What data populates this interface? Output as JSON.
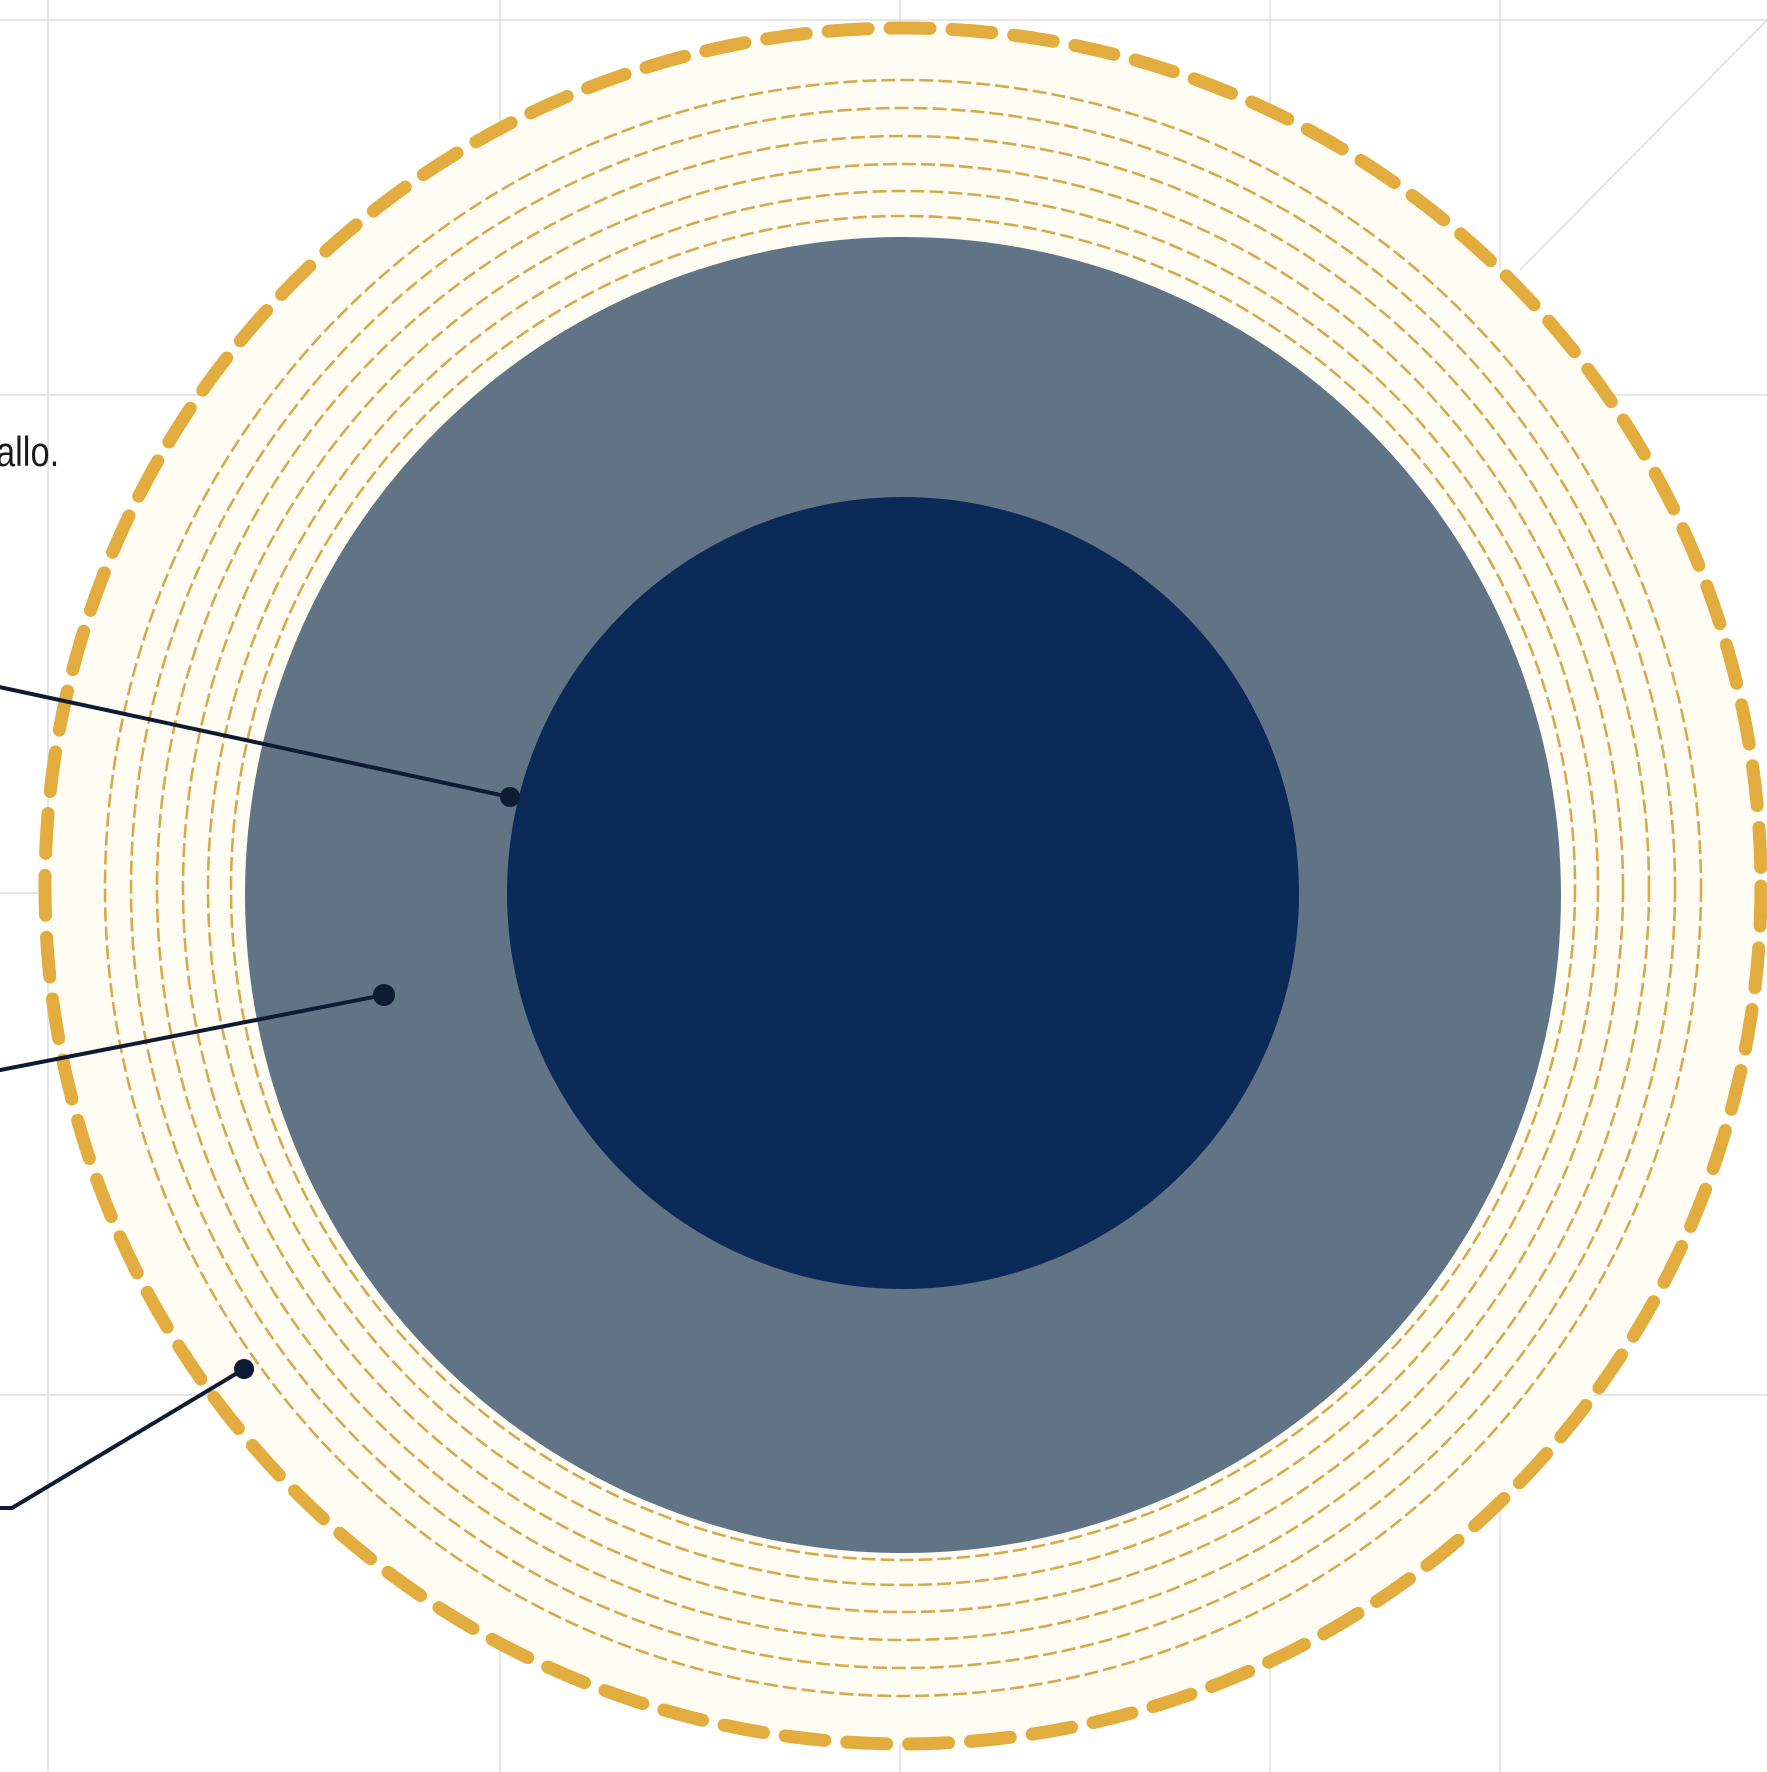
{
  "diagram": {
    "label_fragment": "allo.",
    "colors": {
      "background": "#ffffff",
      "grid": "#dcdde2",
      "outer_ring": "#e2ac3e",
      "inner_rings": "#d7a94e",
      "ring_fill": "#fffdf3",
      "middle_layer": "#617486",
      "core": "#0b2a57",
      "leader_line": "#0d1b33"
    },
    "layers": [
      {
        "id": "outer-boundary",
        "style": "dashed-gold"
      },
      {
        "id": "concentric-rings",
        "style": "dashed-gold",
        "count": 6
      },
      {
        "id": "middle-layer",
        "style": "slate-fill"
      },
      {
        "id": "core",
        "style": "navy-fill"
      }
    ],
    "leaders": [
      {
        "id": "leader-core",
        "target": "core"
      },
      {
        "id": "leader-middle",
        "target": "middle-layer"
      },
      {
        "id": "leader-outer",
        "target": "concentric-rings"
      }
    ]
  }
}
